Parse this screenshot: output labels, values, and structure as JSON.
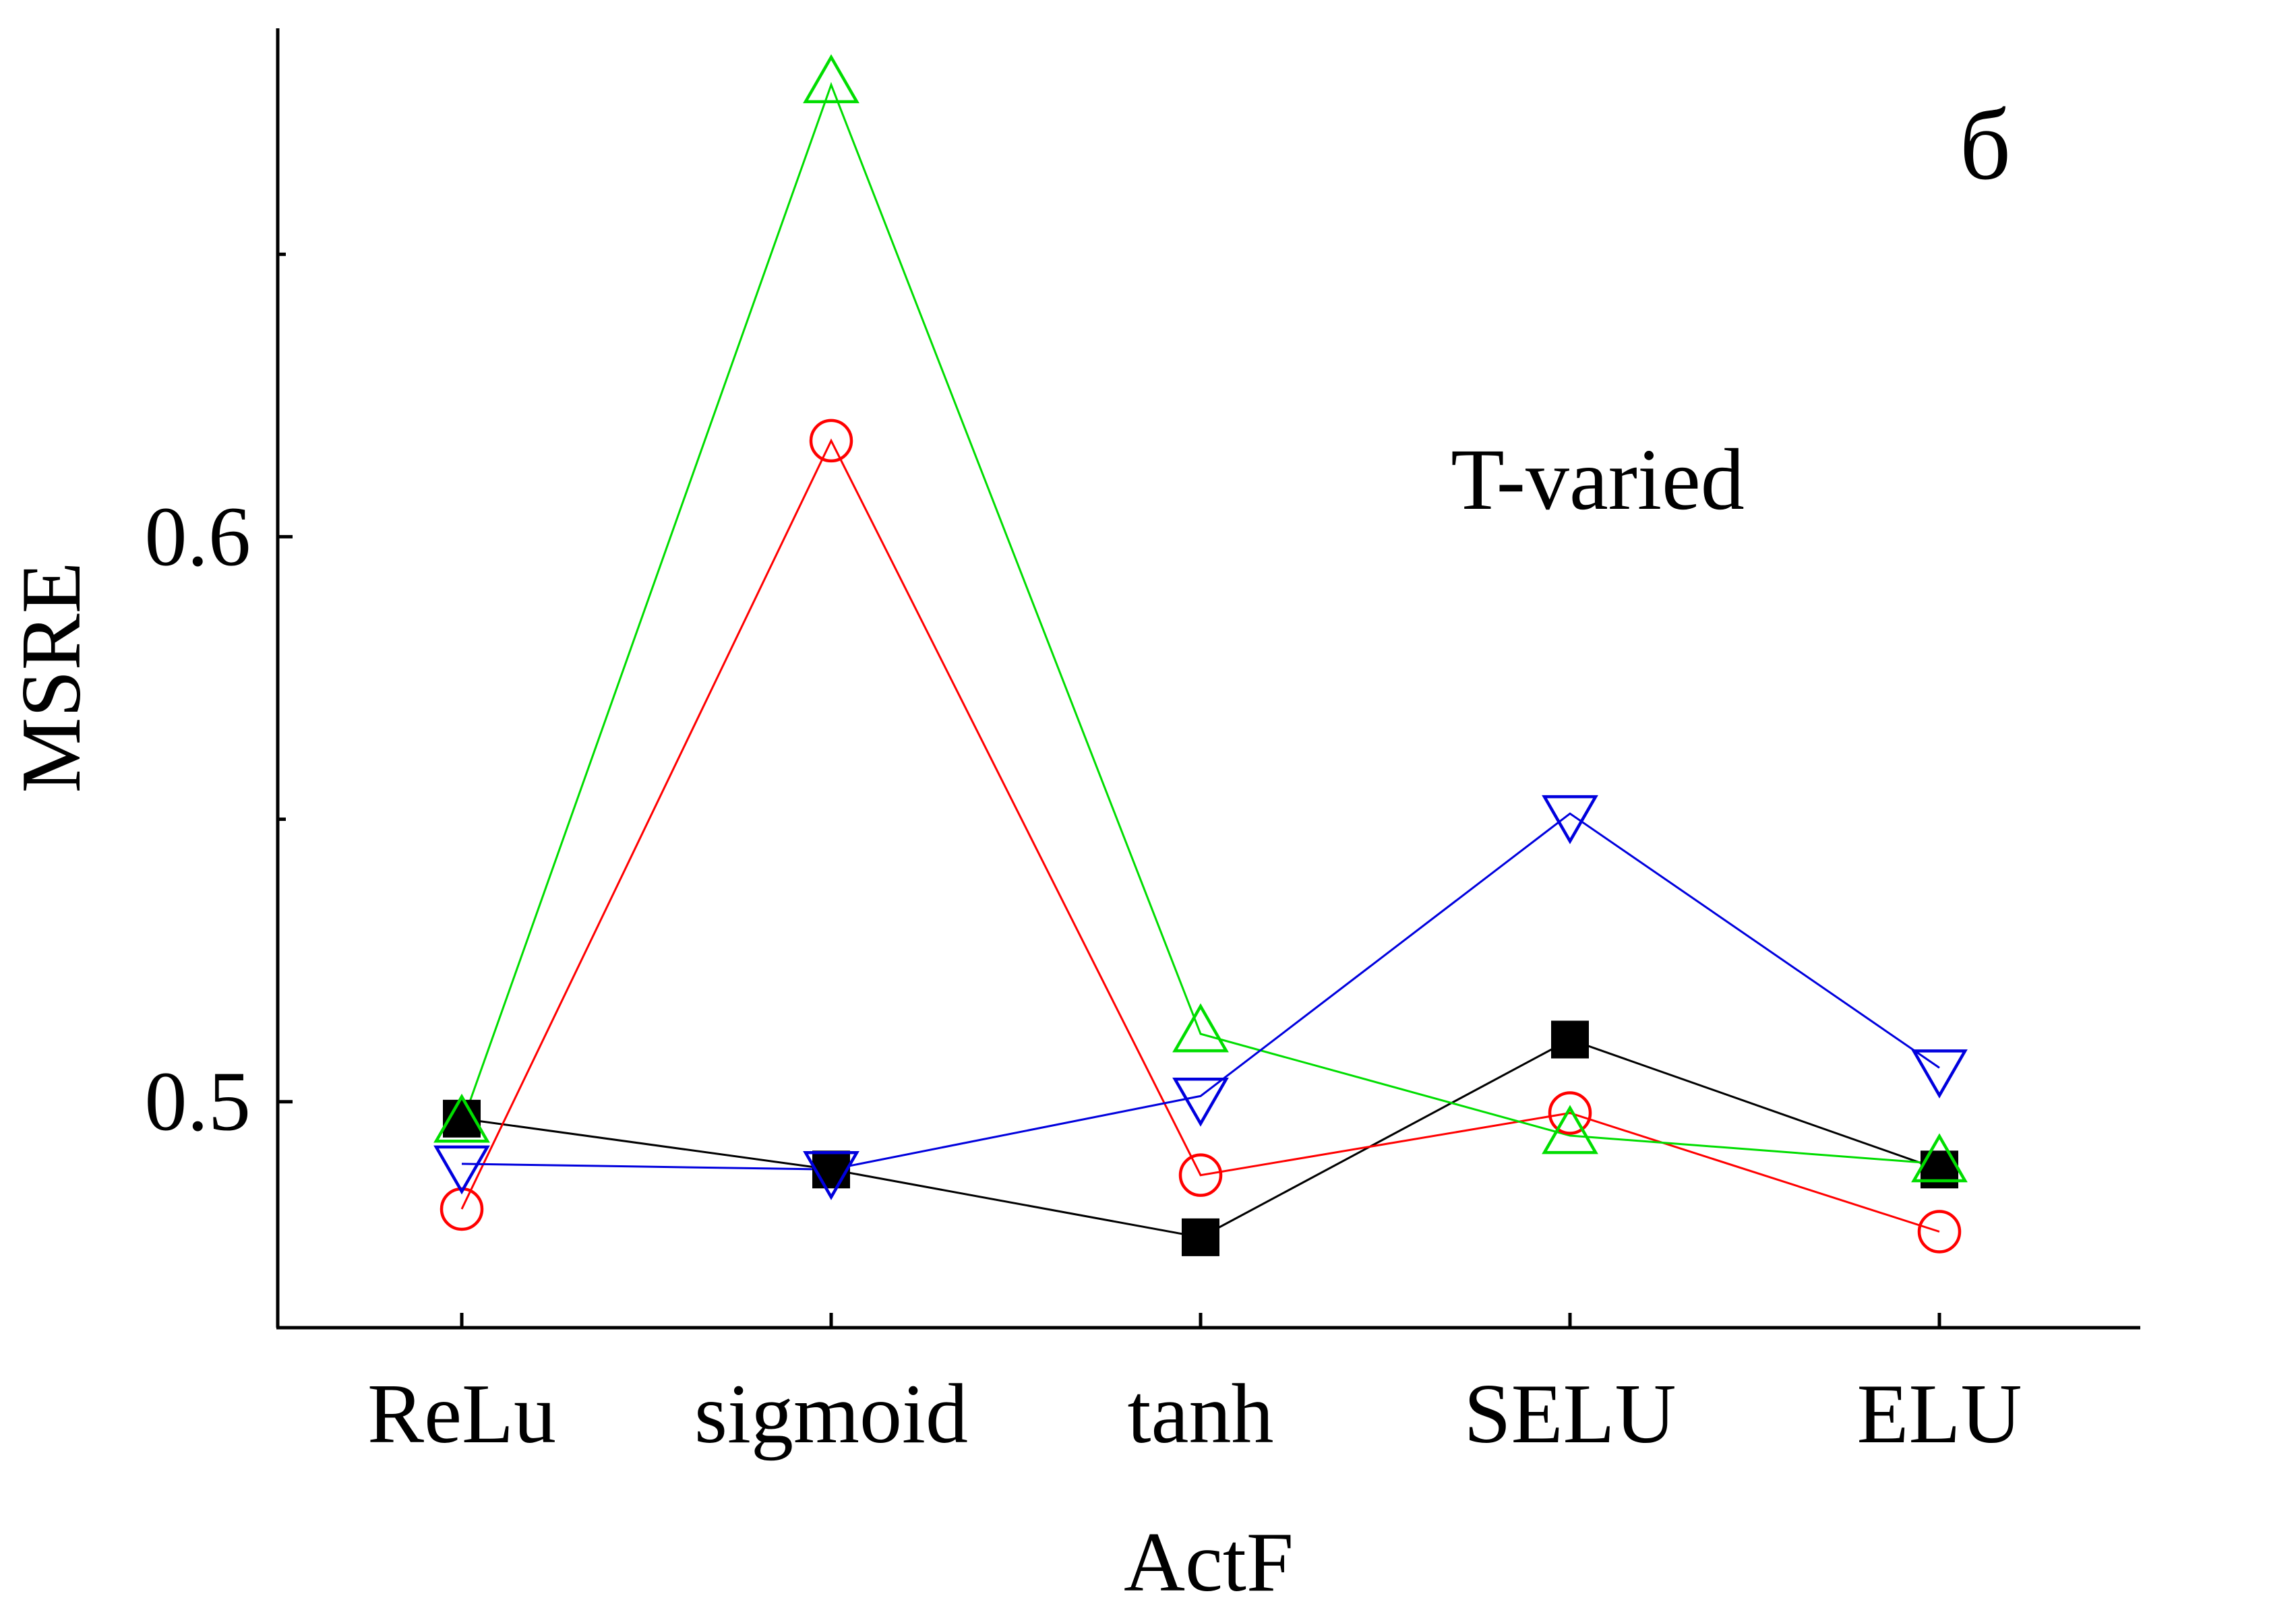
{
  "chart_data": {
    "type": "line",
    "title": "",
    "xlabel": "ActF",
    "ylabel": "MSRE",
    "categories": [
      "ReLu",
      "sigmoid",
      "tanh",
      "SELU",
      "ELU"
    ],
    "ylim": [
      0.46,
      0.69
    ],
    "yticks": [
      0.5,
      0.6
    ],
    "ytick_labels": [
      "0.5",
      "0.6"
    ],
    "y_minor_ticks": [
      0.55,
      0.65
    ],
    "grid": false,
    "legend": "none",
    "annotations": {
      "panel_label": "б",
      "condition_label": "T-varied"
    },
    "series": [
      {
        "marker": "filled-square",
        "color": "#000000",
        "values": [
          0.497,
          0.488,
          0.476,
          0.511,
          0.488
        ]
      },
      {
        "marker": "open-circle",
        "color": "#ff0000",
        "values": [
          0.481,
          0.617,
          0.487,
          0.498,
          0.477
        ]
      },
      {
        "marker": "open-triangle-up",
        "color": "#00dd00",
        "values": [
          0.496,
          0.68,
          0.512,
          0.494,
          0.489
        ]
      },
      {
        "marker": "open-triangle-down",
        "color": "#0000dd",
        "values": [
          0.489,
          0.488,
          0.501,
          0.551,
          0.506
        ]
      }
    ]
  }
}
